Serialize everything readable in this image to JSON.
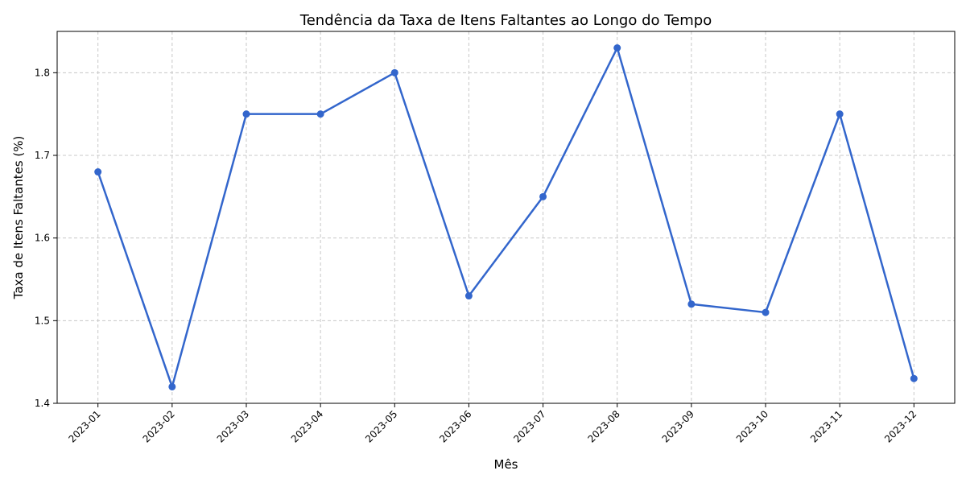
{
  "colors": {
    "line": "#3366cc",
    "grid": "#c8c8c8",
    "axis": "#000000",
    "background": "#ffffff"
  },
  "chart_data": {
    "type": "line",
    "title": "Tendência da Taxa de Itens Faltantes ao Longo do Tempo",
    "xlabel": "Mês",
    "ylabel": "Taxa de Itens Faltantes (%)",
    "categories": [
      "2023-01",
      "2023-02",
      "2023-03",
      "2023-04",
      "2023-05",
      "2023-06",
      "2023-07",
      "2023-08",
      "2023-09",
      "2023-10",
      "2023-11",
      "2023-12"
    ],
    "series": [
      {
        "values": [
          1.68,
          1.42,
          1.75,
          1.75,
          1.8,
          1.53,
          1.65,
          1.83,
          1.52,
          1.51,
          1.75,
          1.43
        ],
        "marker": "circle"
      }
    ],
    "ylim": [
      1.4,
      1.85
    ],
    "yticks": [
      "1.4",
      "1.5",
      "1.6",
      "1.7",
      "1.8"
    ],
    "grid": true,
    "grid_style": "dashed",
    "legend": false
  }
}
